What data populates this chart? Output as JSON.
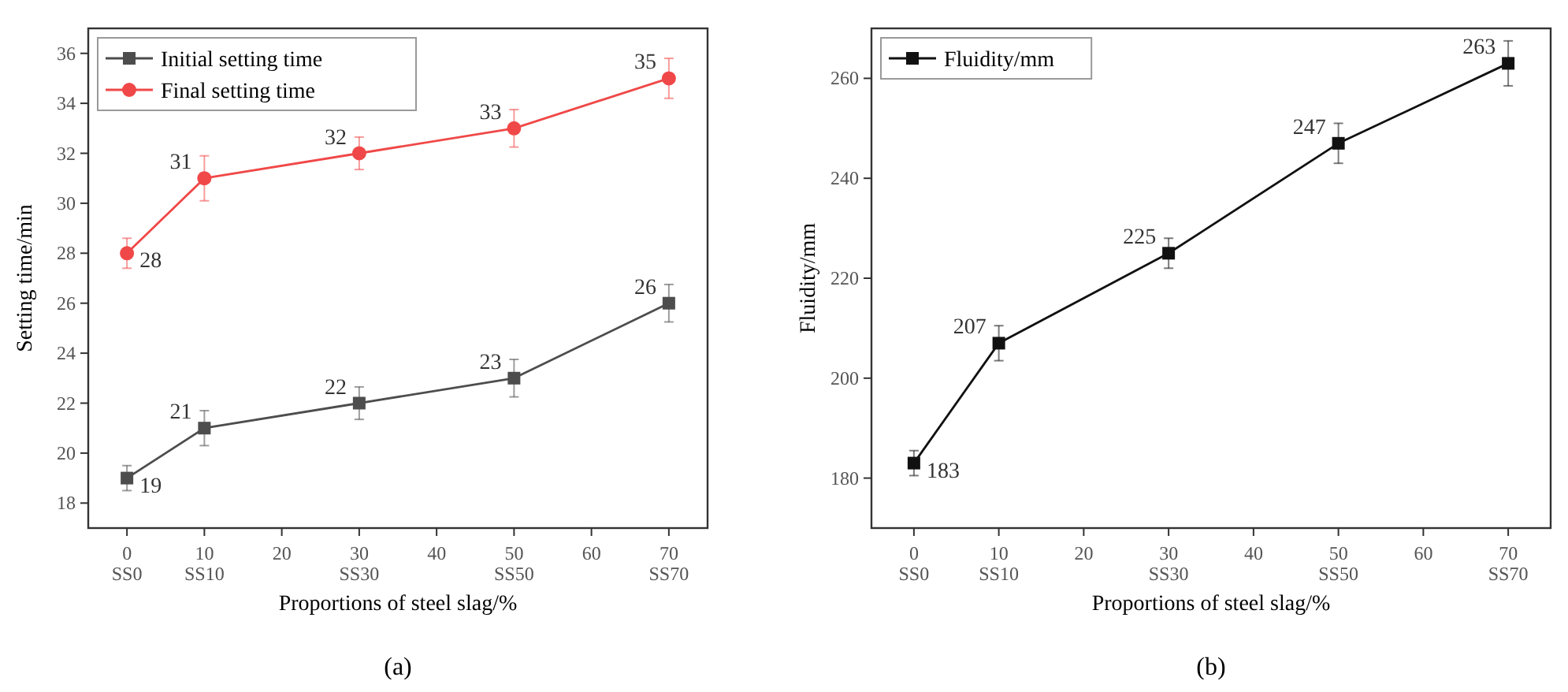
{
  "chart_data": [
    {
      "type": "line",
      "xlabel": "Proportions of steel slag/%",
      "ylabel": "Setting time/min",
      "annotations": [
        "(a)"
      ],
      "x": [
        0,
        10,
        30,
        50,
        70
      ],
      "xlim": [
        -5,
        75
      ],
      "ylim": [
        17,
        37
      ],
      "xticks": [
        {
          "value": 0,
          "label": "0\nSS0"
        },
        {
          "value": 10,
          "label": "10\nSS10"
        },
        20,
        {
          "value": 30,
          "label": "30\nSS30"
        },
        40,
        {
          "value": 50,
          "label": "50\nSS50"
        },
        60,
        {
          "value": 70,
          "label": "70\nSS70"
        }
      ],
      "yticks": [
        18,
        20,
        22,
        24,
        26,
        28,
        30,
        32,
        34,
        36
      ],
      "grid": false,
      "legend": "top left",
      "data_labels": true,
      "series": [
        {
          "name": "Initial setting time",
          "color": "#4d4d4d",
          "marker": "square",
          "values": [
            19,
            21,
            22,
            23,
            26
          ],
          "errors": [
            0.5,
            0.7,
            0.65,
            0.75,
            0.75
          ]
        },
        {
          "name": "Final setting time",
          "color": "#f04848",
          "marker": "circle",
          "values": [
            28,
            31,
            32,
            33,
            35
          ],
          "errors": [
            0.6,
            0.9,
            0.65,
            0.75,
            0.8
          ]
        }
      ]
    },
    {
      "type": "line",
      "xlabel": "Proportions of steel slag/%",
      "ylabel": "Fluidity/mm",
      "annotations": [
        "(b)"
      ],
      "x": [
        0,
        10,
        30,
        50,
        70
      ],
      "xlim": [
        -5,
        75
      ],
      "ylim": [
        170,
        270
      ],
      "xticks": [
        {
          "value": 0,
          "label": "0\nSS0"
        },
        {
          "value": 10,
          "label": "10\nSS10"
        },
        20,
        {
          "value": 30,
          "label": "30\nSS30"
        },
        40,
        {
          "value": 50,
          "label": "50\nSS50"
        },
        60,
        {
          "value": 70,
          "label": "70\nSS70"
        }
      ],
      "yticks": [
        180,
        200,
        220,
        240,
        260
      ],
      "grid": false,
      "legend": "top left",
      "data_labels": true,
      "series": [
        {
          "name": "Fluidity/mm",
          "color": "#111111",
          "marker": "square",
          "values": [
            183,
            207,
            225,
            247,
            263
          ],
          "errors": [
            2.5,
            3.5,
            3,
            4,
            4.5
          ]
        }
      ]
    }
  ]
}
